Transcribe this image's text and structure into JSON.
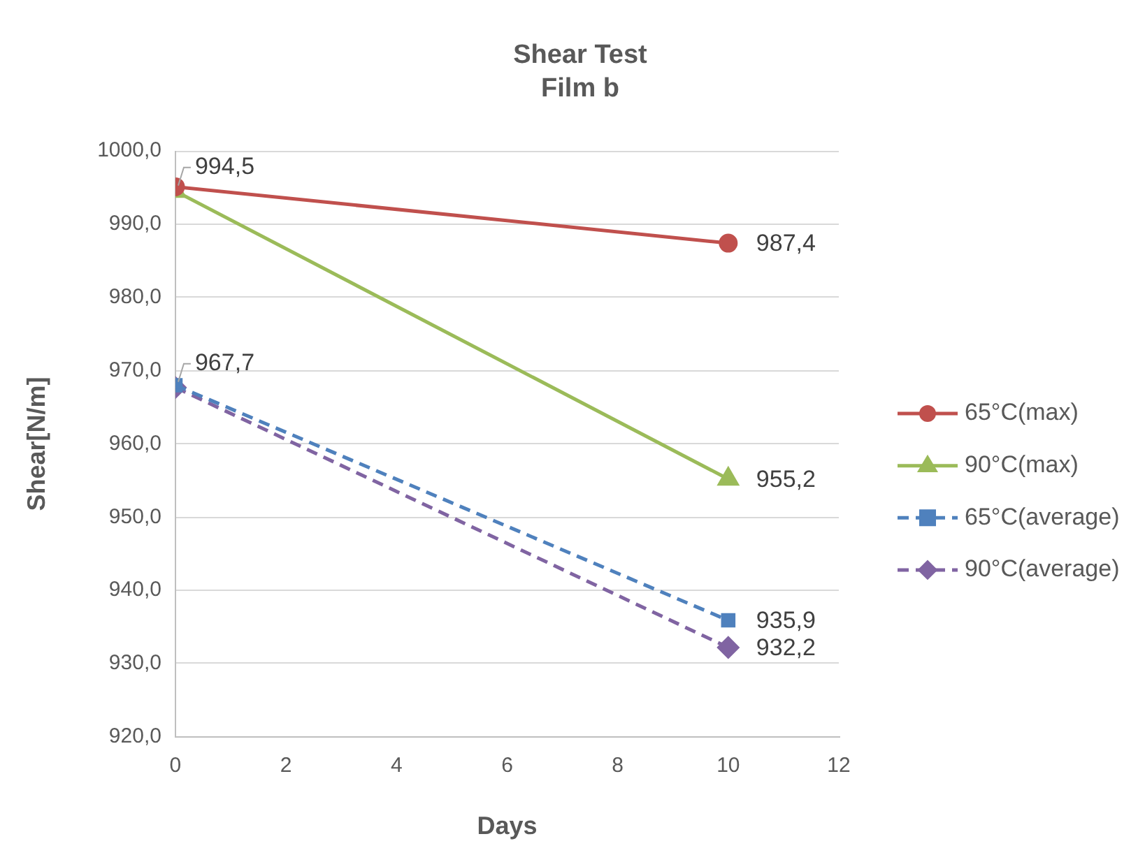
{
  "chart_data": {
    "type": "line",
    "title": "Shear Test",
    "subtitle": "Film b",
    "xlabel": "Days",
    "ylabel": "Shear[N/m]",
    "x": [
      0,
      10
    ],
    "xlim": [
      0,
      12
    ],
    "xticks": [
      0,
      2,
      4,
      6,
      8,
      10,
      12
    ],
    "ylim": [
      920,
      1000
    ],
    "yticks": [
      {
        "value": 920,
        "label": "920,0"
      },
      {
        "value": 930,
        "label": "930,0"
      },
      {
        "value": 940,
        "label": "940,0"
      },
      {
        "value": 950,
        "label": "950,0"
      },
      {
        "value": 960,
        "label": "960,0"
      },
      {
        "value": 970,
        "label": "970,0"
      },
      {
        "value": 980,
        "label": "980,0"
      },
      {
        "value": 990,
        "label": "990,0"
      },
      {
        "value": 1000,
        "label": "1000,0"
      }
    ],
    "grid": "y",
    "legend": "right",
    "series": [
      {
        "name": "65°C(max)",
        "color": "#c0504d",
        "values": [
          995.1,
          987.4
        ],
        "value_labels": [
          null,
          "987,4"
        ],
        "marker": "circle",
        "line_style": "solid"
      },
      {
        "name": "90°C(max)",
        "color": "#9bbb59",
        "values": [
          994.5,
          955.2
        ],
        "value_labels": [
          "994,5",
          "955,2"
        ],
        "marker": "triangle",
        "line_style": "solid"
      },
      {
        "name": "65°C(average)",
        "color": "#4f81bd",
        "values": [
          968.0,
          935.9
        ],
        "value_labels": [
          null,
          "935,9"
        ],
        "marker": "square",
        "line_style": "dashed"
      },
      {
        "name": "90°C(average)",
        "color": "#8064a2",
        "values": [
          967.7,
          932.2
        ],
        "value_labels": [
          "967,7",
          "932,2"
        ],
        "marker": "diamond",
        "line_style": "dashed"
      }
    ]
  }
}
